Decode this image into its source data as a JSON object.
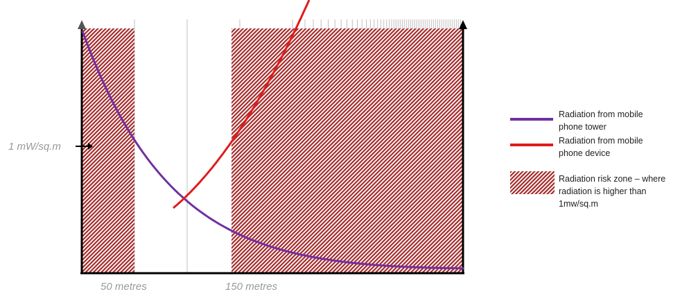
{
  "colors": {
    "tower": "#7030a0",
    "device": "#e01b1b",
    "risk_zone": "#a52a2a",
    "axis": "#000000",
    "gridline": "#bfbfbf",
    "tick_label": "#999999"
  },
  "icons": {
    "threshold_marker": "right-arrow-icon",
    "axis_arrowhead": "up-arrow-icon"
  },
  "chart_data": {
    "type": "line",
    "title": "",
    "xlabel": "",
    "ylabel": "",
    "x_tick_labels": [
      "50 metres",
      "150 metres"
    ],
    "y_annotation": "1 mW/sq.m",
    "series": [
      {
        "name": "Radiation from mobile phone tower",
        "color": "#7030a0"
      },
      {
        "name": "Radiation from mobile phone device",
        "color": "#e01b1b"
      }
    ],
    "risk_zone_label": "Radiation risk zone – where radiation is higher than 1mw/sq.m"
  },
  "legend": {
    "tower_line1": "Radiation from mobile",
    "tower_line2": "phone tower",
    "device_line1": "Radiation from mobile",
    "device_line2": "phone device",
    "zone_line1": "Radiation risk zone – where",
    "zone_line2": "radiation is higher than",
    "zone_line3": "1mw/sq.m"
  }
}
